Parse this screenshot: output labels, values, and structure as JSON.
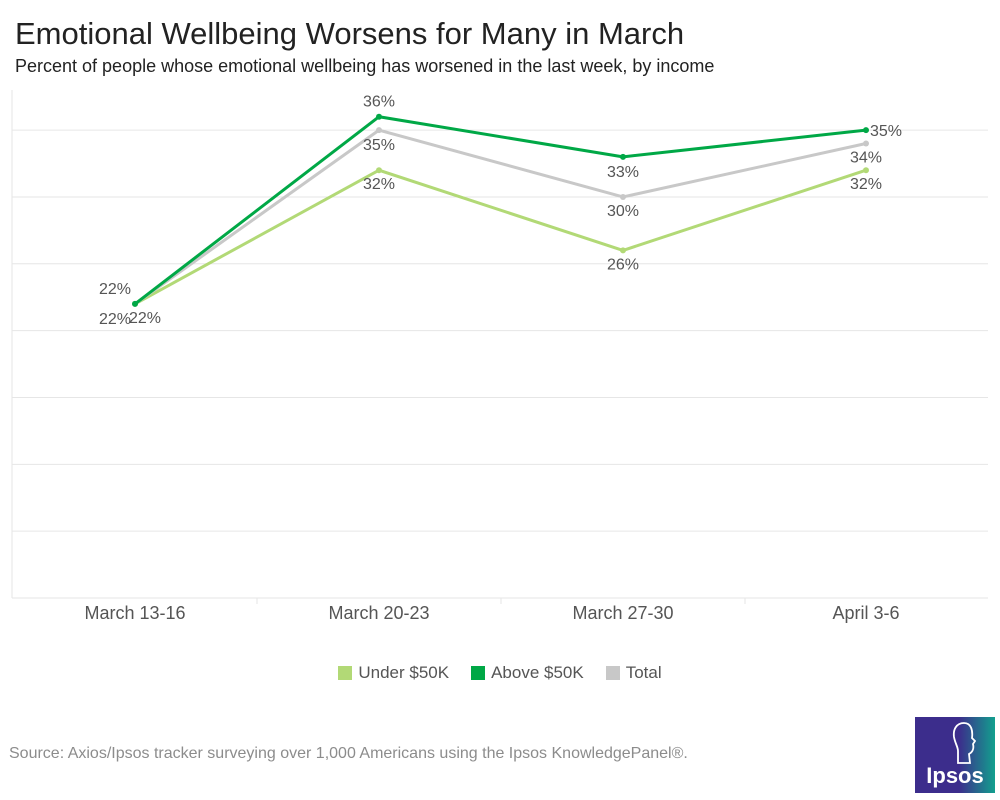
{
  "chart_data": {
    "type": "line",
    "title": "Emotional Wellbeing Worsens for Many in March",
    "subtitle": "Percent of people whose emotional wellbeing has worsened in the last week, by income",
    "categories": [
      "March 13-16",
      "March 20-23",
      "March 27-30",
      "April 3-6"
    ],
    "series": [
      {
        "name": "Under $50K",
        "color": "#b2d976",
        "values": [
          22,
          32,
          26,
          32
        ],
        "labels": [
          "22%",
          "32%",
          "26%",
          "32%"
        ]
      },
      {
        "name": "Above $50K",
        "color": "#00a846",
        "values": [
          22,
          36,
          33,
          35
        ],
        "labels": [
          "22%",
          "36%",
          "33%",
          "35%"
        ]
      },
      {
        "name": "Total",
        "color": "#c8c8c8",
        "values": [
          22,
          35,
          30,
          34
        ],
        "labels": [
          "22%",
          "35%",
          "30%",
          "34%"
        ]
      }
    ],
    "ylim": [
      0,
      38
    ],
    "grid": true,
    "legend_position": "bottom"
  },
  "source": "Source: Axios/Ipsos tracker surveying over 1,000  Americans using the Ipsos KnowledgePanel®.",
  "logo": {
    "text": "Ipsos"
  }
}
